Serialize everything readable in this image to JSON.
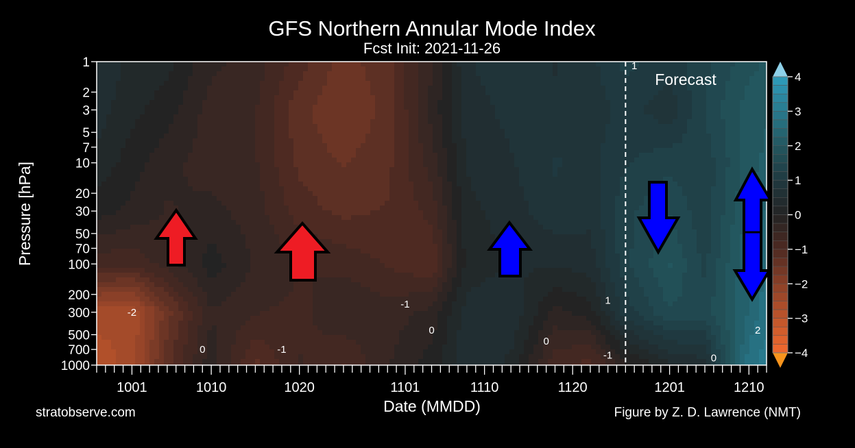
{
  "chart_data": {
    "type": "heatmap",
    "title": "GFS Northern Annular Mode Index",
    "subtitle": "Fcst Init: 2021-11-26",
    "xlabel": "Date (MMDD)",
    "ylabel": "Pressure [hPa]",
    "xlim": [
      "2021-09-27",
      "2021-12-12"
    ],
    "ylim": [
      1000,
      1
    ],
    "yscale": "log",
    "x_tick_labels": [
      {
        "date": "2021-10-01",
        "label": "1001"
      },
      {
        "date": "2021-10-10",
        "label": "1010"
      },
      {
        "date": "2021-10-20",
        "label": "1020"
      },
      {
        "date": "2021-11-01",
        "label": "1101"
      },
      {
        "date": "2021-11-10",
        "label": "1110"
      },
      {
        "date": "2021-11-20",
        "label": "1120"
      },
      {
        "date": "2021-12-01",
        "label": "1201"
      },
      {
        "date": "2021-12-10",
        "label": "1210"
      }
    ],
    "y_ticks": [
      1,
      2,
      3,
      5,
      7,
      10,
      20,
      30,
      50,
      70,
      100,
      200,
      300,
      500,
      700,
      1000
    ],
    "levels": [
      1,
      3,
      10,
      30,
      100,
      300,
      1000
    ],
    "dates": [
      "2021-09-27",
      "2021-10-01",
      "2021-10-05",
      "2021-10-10",
      "2021-10-15",
      "2021-10-20",
      "2021-10-25",
      "2021-10-30",
      "2021-11-04",
      "2021-11-08",
      "2021-11-13",
      "2021-11-18",
      "2021-11-22",
      "2021-11-26",
      "2021-12-01",
      "2021-12-05",
      "2021-12-10",
      "2021-12-12"
    ],
    "values": [
      [
        0.6,
        0.5,
        0.3,
        0.0,
        -0.8,
        -2.5,
        -2.8
      ],
      [
        0.3,
        0.2,
        0.0,
        -0.2,
        -0.8,
        -2.6,
        -2.5
      ],
      [
        0.2,
        0.0,
        -0.3,
        -0.4,
        -0.5,
        -1.5,
        -1.2
      ],
      [
        -0.3,
        -0.5,
        -0.5,
        -0.3,
        0.0,
        -0.4,
        -0.2
      ],
      [
        -0.5,
        -0.6,
        -0.6,
        -0.5,
        -0.4,
        -0.6,
        -1.2
      ],
      [
        -1.0,
        -1.3,
        -1.2,
        -1.0,
        -0.6,
        -0.7,
        -0.6
      ],
      [
        -1.5,
        -1.6,
        -1.4,
        -1.2,
        -0.7,
        -0.4,
        -0.9
      ],
      [
        -1.2,
        -1.3,
        -1.2,
        -1.1,
        -0.9,
        -0.5,
        -0.4
      ],
      [
        -0.4,
        -0.3,
        -0.5,
        -0.8,
        -1.1,
        -0.3,
        0.0
      ],
      [
        0.6,
        0.5,
        0.4,
        0.3,
        0.2,
        0.5,
        0.6
      ],
      [
        0.8,
        0.7,
        0.6,
        0.5,
        0.4,
        0.6,
        0.3
      ],
      [
        0.6,
        0.7,
        0.9,
        0.8,
        0.4,
        -0.2,
        -0.8
      ],
      [
        0.8,
        0.7,
        0.8,
        0.7,
        0.5,
        0.0,
        -1.0
      ],
      [
        1.2,
        1.0,
        1.1,
        1.3,
        1.3,
        1.0,
        -0.2
      ],
      [
        1.0,
        0.7,
        1.3,
        1.6,
        1.9,
        1.6,
        0.3
      ],
      [
        1.3,
        1.4,
        1.2,
        1.2,
        1.3,
        1.5,
        0.5
      ],
      [
        1.8,
        2.0,
        2.0,
        2.2,
        2.4,
        2.4,
        2.8
      ],
      [
        1.9,
        2.1,
        2.2,
        2.4,
        2.6,
        2.8,
        3.0
      ]
    ],
    "contour_labels": [
      {
        "text": "-2",
        "date": "2021-10-01",
        "p": 300
      },
      {
        "text": "0",
        "date": "2021-10-09",
        "p": 700
      },
      {
        "text": "-1",
        "date": "2021-10-18",
        "p": 700
      },
      {
        "text": "-1",
        "date": "2021-11-01",
        "p": 250
      },
      {
        "text": "0",
        "date": "2021-11-04",
        "p": 450
      },
      {
        "text": "0",
        "date": "2021-11-17",
        "p": 580
      },
      {
        "text": "1",
        "date": "2021-11-24",
        "p": 230
      },
      {
        "text": "-1",
        "date": "2021-11-24",
        "p": 800
      },
      {
        "text": "1",
        "date": "2021-11-27",
        "p": 1.1
      },
      {
        "text": "0",
        "date": "2021-12-06",
        "p": 850
      },
      {
        "text": "2",
        "date": "2021-12-11",
        "p": 450
      }
    ],
    "forecast_start": "2021-11-26",
    "forecast_label": "Forecast",
    "colorbar": {
      "range": [
        -4,
        4
      ],
      "step": 0.25,
      "ticks": [
        "4",
        "3",
        "2",
        "1",
        "0",
        "−1",
        "−2",
        "−3",
        "−4"
      ],
      "tick_values": [
        4,
        3,
        2,
        1,
        0,
        -1,
        -2,
        -3,
        -4
      ],
      "extend_max_color": "#8dd0e8",
      "extend_min_color": "#f7941d"
    },
    "colormap": [
      {
        "v": -4,
        "c": "#f26a2e"
      },
      {
        "v": -2,
        "c": "#8a4028"
      },
      {
        "v": -1,
        "c": "#4e2a22"
      },
      {
        "v": 0,
        "c": "#232323"
      },
      {
        "v": 1,
        "c": "#1f3940"
      },
      {
        "v": 2,
        "c": "#23575f"
      },
      {
        "v": 4,
        "c": "#2e9cbc"
      }
    ],
    "annotation_arrows": [
      {
        "color": "#ee1c24",
        "direction": "up"
      },
      {
        "color": "#ee1c24",
        "direction": "up"
      },
      {
        "color": "#0000ff",
        "direction": "up"
      },
      {
        "color": "#0000ff",
        "direction": "down"
      },
      {
        "color": "#0000ff",
        "direction": "up-down"
      }
    ]
  },
  "footer": {
    "source": "stratobserve.com",
    "credit": "Figure by Z. D. Lawrence (NMT)"
  }
}
